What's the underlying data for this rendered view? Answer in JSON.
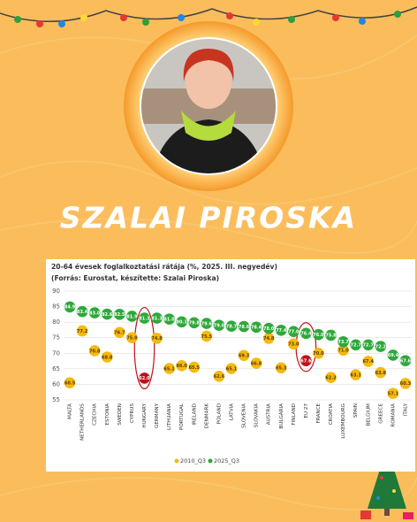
{
  "header": {
    "name": "SZALAI PIROSKA"
  },
  "chart_data": {
    "type": "dot",
    "title": "20-64 évesek foglalkoztatási rátája (%, 2025. III. negyedév)",
    "subtitle": "(Forrás: Eurostat, készítette: Szalai Piroska)",
    "categories": [
      "MALTA",
      "NETHERLANDS",
      "CZECHIA",
      "ESTONIA",
      "SWEDEN",
      "CYPRUS",
      "HUNGARY",
      "GERMANY",
      "LITHUANIA",
      "PORTUGAL",
      "IRELAND",
      "DENMARK",
      "POLAND",
      "LATVIA",
      "SLOVENIA",
      "SLOVAKIA",
      "AUSTRIA",
      "BULGARIA",
      "FINLAND",
      "EU 27",
      "FRANCE",
      "CROATIA",
      "LUXEMBOURG",
      "SPAIN",
      "BELGIUM",
      "GREECE",
      "ROMANIA",
      "ITALY"
    ],
    "series": [
      {
        "name": "2010_Q3",
        "color": "#f6b90f",
        "values": [
          60.5,
          77.2,
          70.8,
          68.8,
          76.7,
          75.0,
          62.0,
          74.8,
          65.1,
          66.0,
          65.5,
          75.5,
          62.6,
          65.1,
          69.3,
          66.8,
          74.8,
          65.3,
          73.0,
          67.6,
          70.0,
          62.2,
          71.0,
          63.1,
          67.4,
          63.8,
          57.1,
          60.3
        ],
        "value_labels": [
          "60.5",
          "77.2",
          "70.8",
          "68.8",
          "76.7",
          "75.0",
          "62.0",
          "74.8",
          "65.1",
          "66.0",
          "65.5",
          "75.5",
          "62.6",
          "65.1",
          "69.3",
          "66.8",
          "74.8",
          "65.3",
          "73.0",
          "67.6",
          "70.0",
          "62.2",
          "71.0",
          "63.1",
          "67.4",
          "63.8",
          "57.1",
          "60.3"
        ]
      },
      {
        "name": "2025_Q3",
        "color": "#2ea83a",
        "values": [
          84.9,
          83.4,
          83.0,
          82.6,
          82.5,
          81.9,
          81.3,
          81.3,
          81.0,
          80.1,
          79.8,
          79.6,
          79.0,
          78.7,
          78.6,
          78.4,
          78.0,
          77.4,
          77.0,
          76.4,
          76.0,
          75.8,
          73.7,
          72.7,
          72.7,
          72.2,
          69.4,
          67.6
        ],
        "value_labels": [
          "84.9",
          "83.4",
          "83.0",
          "82.6",
          "82.5",
          "81.9",
          "81.3",
          "81.3",
          "81.0",
          "80.1",
          "79.8",
          "79.6",
          "79.0",
          "78.7",
          "78.6",
          "78.4",
          "78.0",
          "77.4",
          "77.0",
          "76.4",
          "76.0",
          "75.8",
          "73.7",
          "72.7",
          "72.7",
          "72.2",
          "69.4",
          "67.6"
        ]
      }
    ],
    "ylim": [
      55,
      90
    ],
    "yticks": [
      55,
      60,
      65,
      70,
      75,
      80,
      85,
      90
    ],
    "grid": true,
    "highlight": [
      6,
      19
    ],
    "highlight_color": "#c0101a"
  }
}
